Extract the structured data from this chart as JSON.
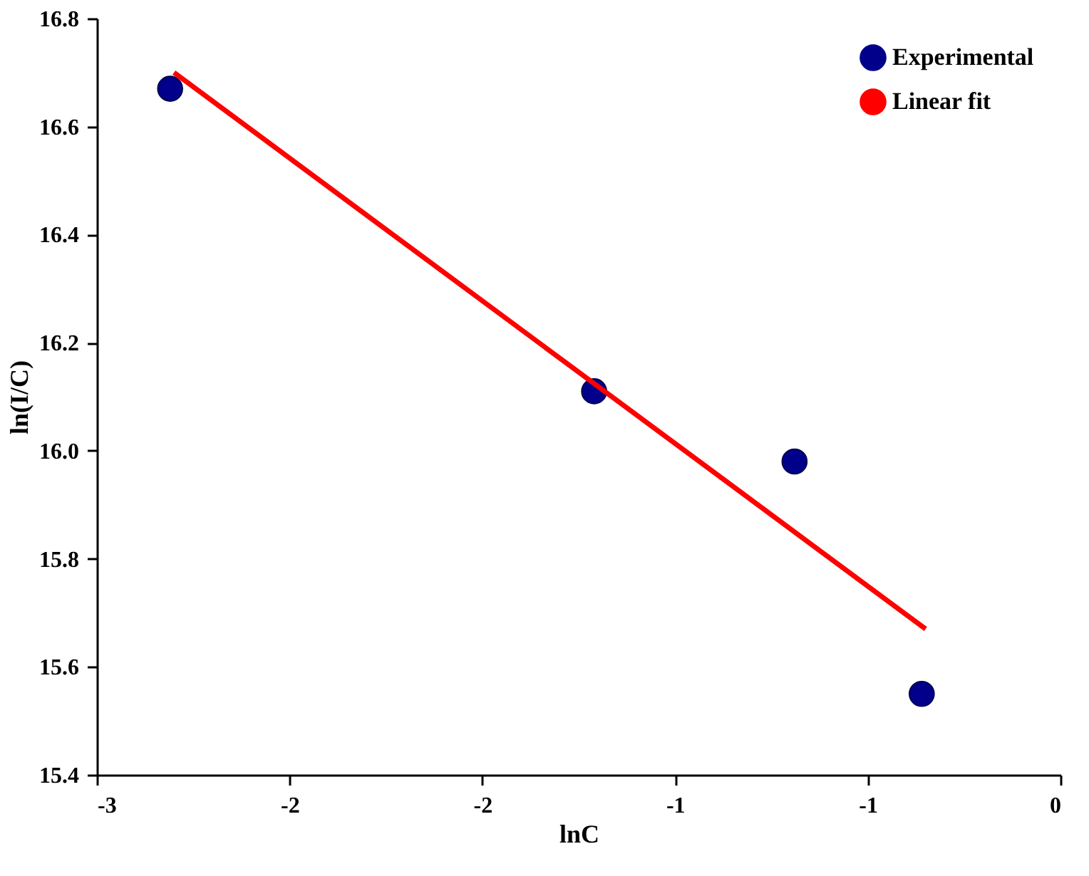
{
  "chart_data": {
    "type": "scatter",
    "xlabel": "lnC",
    "ylabel": "ln(I/C)",
    "series": [
      {
        "name": "Experimental",
        "color": "#00008b",
        "marker": "circle",
        "x": [
          -2.31,
          -1.21,
          -0.69,
          -0.36
        ],
        "values": [
          16.67,
          16.11,
          15.98,
          15.55
        ]
      },
      {
        "name": "Linear fit",
        "type": "line",
        "color": "#ff0000",
        "line_style": "solid",
        "x": [
          -2.3,
          -0.35
        ],
        "values": [
          16.7,
          15.67
        ]
      }
    ],
    "xlim": [
      -2.5,
      0
    ],
    "xticks": [
      {
        "value": -2.5,
        "label": "-3"
      },
      {
        "value": -2.0,
        "label": "-2"
      },
      {
        "value": -1.5,
        "label": "-2"
      },
      {
        "value": -1.0,
        "label": "-1"
      },
      {
        "value": -0.5,
        "label": "-1"
      },
      0
    ],
    "ylim": [
      15.4,
      16.8
    ],
    "yticks": [
      15.4,
      15.6,
      15.8,
      {
        "value": 16,
        "label": "16.0"
      },
      16.2,
      16.4,
      16.6,
      16.8
    ],
    "grid": false,
    "legend": "top right"
  }
}
